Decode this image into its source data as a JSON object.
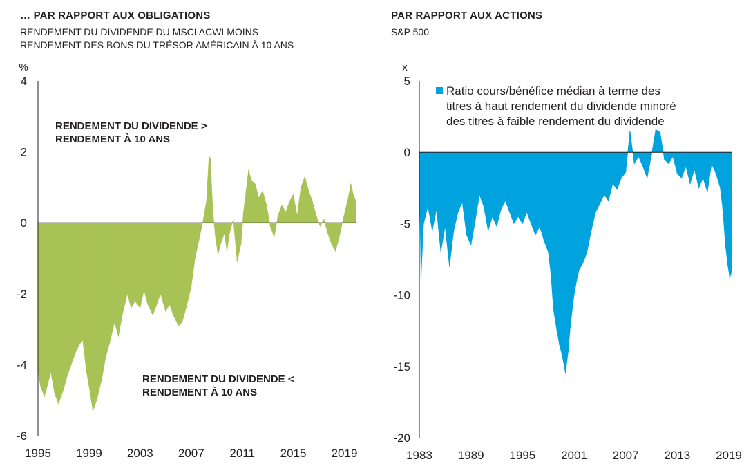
{
  "chart_data": [
    {
      "type": "area",
      "title": "… PAR RAPPORT AUX OBLIGATIONS",
      "subtitle": [
        "RENDEMENT DU DIVIDENDE DU MSCI ACWI MOINS",
        "RENDEMENT DES BONS DU TRÉSOR AMÉRICAIN À 10 ANS"
      ],
      "ylabel": "%",
      "ylim": [
        -6,
        4
      ],
      "yticks": [
        "4",
        "2",
        "0",
        "-2",
        "-4",
        "-6"
      ],
      "xlim": [
        1995,
        2020
      ],
      "xticks": [
        "1995",
        "1999",
        "2003",
        "2007",
        "2011",
        "2015",
        "2019"
      ],
      "color": "#a8c355",
      "annotations": [
        "RENDEMENT DU DIVIDENDE >",
        "RENDEMENT À 10 ANS",
        "RENDEMENT DU DIVIDENDE <",
        "RENDEMENT À 10 ANS"
      ],
      "x": [
        1995.0,
        1995.2,
        1995.5,
        1995.8,
        1996.0,
        1996.3,
        1996.6,
        1997.0,
        1997.3,
        1997.6,
        1998.0,
        1998.3,
        1998.5,
        1998.8,
        1999.0,
        1999.3,
        1999.6,
        2000.0,
        2000.3,
        2000.6,
        2001.0,
        2001.3,
        2001.6,
        2002.0,
        2002.3,
        2002.6,
        2003.0,
        2003.3,
        2003.6,
        2004.0,
        2004.3,
        2004.6,
        2005.0,
        2005.3,
        2005.6,
        2006.0,
        2006.3,
        2006.6,
        2007.0,
        2007.3,
        2007.6,
        2007.9,
        2008.2,
        2008.4,
        2008.5,
        2008.7,
        2008.9,
        2009.1,
        2009.3,
        2009.6,
        2009.8,
        2010.0,
        2010.3,
        2010.6,
        2010.9,
        2011.1,
        2011.3,
        2011.5,
        2011.7,
        2012.0,
        2012.3,
        2012.6,
        2012.9,
        2013.2,
        2013.5,
        2013.8,
        2014.1,
        2014.4,
        2014.7,
        2015.0,
        2015.3,
        2015.6,
        2015.9,
        2016.2,
        2016.5,
        2016.8,
        2017.1,
        2017.4,
        2017.7,
        2018.0,
        2018.3,
        2018.6,
        2018.9,
        2019.1,
        2019.3,
        2019.5,
        2019.7,
        2019.9
      ],
      "values": [
        -4.2,
        -4.6,
        -4.9,
        -4.5,
        -4.2,
        -4.8,
        -5.1,
        -4.7,
        -4.3,
        -4.0,
        -3.6,
        -3.4,
        -3.3,
        -4.2,
        -4.6,
        -5.3,
        -5.0,
        -4.4,
        -3.8,
        -3.4,
        -2.8,
        -3.2,
        -2.6,
        -2.0,
        -2.4,
        -2.2,
        -2.4,
        -1.9,
        -2.3,
        -2.6,
        -2.3,
        -2.0,
        -2.5,
        -2.3,
        -2.6,
        -2.9,
        -2.8,
        -2.4,
        -1.8,
        -1.0,
        -0.5,
        0.0,
        0.6,
        1.9,
        1.8,
        0.3,
        -0.4,
        -0.9,
        -0.6,
        -0.3,
        -0.8,
        -0.3,
        0.1,
        -1.1,
        -0.6,
        0.3,
        0.9,
        1.5,
        1.2,
        1.1,
        0.7,
        0.9,
        0.5,
        -0.1,
        -0.4,
        0.2,
        0.5,
        0.3,
        0.6,
        0.8,
        0.2,
        1.0,
        1.3,
        0.9,
        0.6,
        0.2,
        -0.1,
        0.1,
        -0.3,
        -0.6,
        -0.8,
        -0.4,
        0.1,
        0.4,
        0.7,
        1.1,
        0.8,
        0.6
      ]
    },
    {
      "type": "area",
      "title": "PAR RAPPORT AUX ACTIONS",
      "subtitle": [
        "S&P 500"
      ],
      "ylabel": "x",
      "ylim": [
        -20,
        5
      ],
      "yticks": [
        "5",
        "0",
        "-5",
        "-10",
        "-15",
        "-20"
      ],
      "xlim": [
        1983,
        2019.4
      ],
      "xticks": [
        "1983",
        "1989",
        "1995",
        "2001",
        "2007",
        "2013",
        "2019"
      ],
      "color": "#00a3dd",
      "legend": "Ratio cours/bénéfice médian à terme des titres à haut rendement du dividende minoré des titres à faible rendement du dividende",
      "legend_lines": [
        "Ratio cours/bénéfice médian à terme des",
        "titres à haut rendement du dividende minoré",
        "des titres à faible rendement du dividende"
      ],
      "x": [
        1983.0,
        1983.2,
        1983.5,
        1984.0,
        1984.5,
        1985.0,
        1985.5,
        1986.0,
        1986.5,
        1987.0,
        1987.5,
        1988.0,
        1988.5,
        1989.0,
        1989.5,
        1990.0,
        1990.5,
        1991.0,
        1991.5,
        1992.0,
        1992.5,
        1993.0,
        1993.5,
        1994.0,
        1994.5,
        1995.0,
        1995.5,
        1996.0,
        1996.5,
        1997.0,
        1997.5,
        1998.0,
        1998.3,
        1998.6,
        1999.0,
        1999.3,
        1999.6,
        2000.0,
        2000.3,
        2000.6,
        2001.0,
        2001.3,
        2001.6,
        2002.0,
        2002.5,
        2003.0,
        2003.5,
        2004.0,
        2004.5,
        2005.0,
        2005.5,
        2006.0,
        2006.5,
        2007.0,
        2007.5,
        2008.0,
        2008.5,
        2009.0,
        2009.5,
        2010.0,
        2010.5,
        2011.0,
        2011.5,
        2012.0,
        2012.5,
        2013.0,
        2013.5,
        2014.0,
        2014.5,
        2015.0,
        2015.5,
        2016.0,
        2016.5,
        2017.0,
        2017.5,
        2018.0,
        2018.3,
        2018.6,
        2018.9,
        2019.1,
        2019.3
      ],
      "values": [
        -2.0,
        -8.8,
        -5.0,
        -3.8,
        -5.5,
        -4.0,
        -7.0,
        -5.2,
        -8.0,
        -5.5,
        -4.2,
        -3.5,
        -5.8,
        -6.5,
        -4.8,
        -3.0,
        -3.8,
        -5.5,
        -4.5,
        -5.2,
        -4.0,
        -3.4,
        -4.2,
        -5.0,
        -4.5,
        -5.0,
        -4.2,
        -5.0,
        -5.8,
        -5.2,
        -6.2,
        -7.0,
        -8.5,
        -11.0,
        -12.5,
        -13.5,
        -14.2,
        -15.5,
        -14.0,
        -12.0,
        -10.0,
        -9.0,
        -8.2,
        -7.8,
        -7.0,
        -5.5,
        -4.2,
        -3.6,
        -3.0,
        -3.4,
        -2.2,
        -2.6,
        -1.8,
        -1.4,
        1.5,
        -0.8,
        -0.3,
        -1.0,
        -1.8,
        -0.2,
        1.6,
        1.4,
        -0.5,
        -0.8,
        -0.3,
        -1.5,
        -1.8,
        -1.0,
        -2.2,
        -1.2,
        -2.5,
        -1.8,
        -2.8,
        -0.8,
        -1.5,
        -2.5,
        -4.0,
        -6.5,
        -8.0,
        -8.8,
        -8.4
      ]
    }
  ]
}
